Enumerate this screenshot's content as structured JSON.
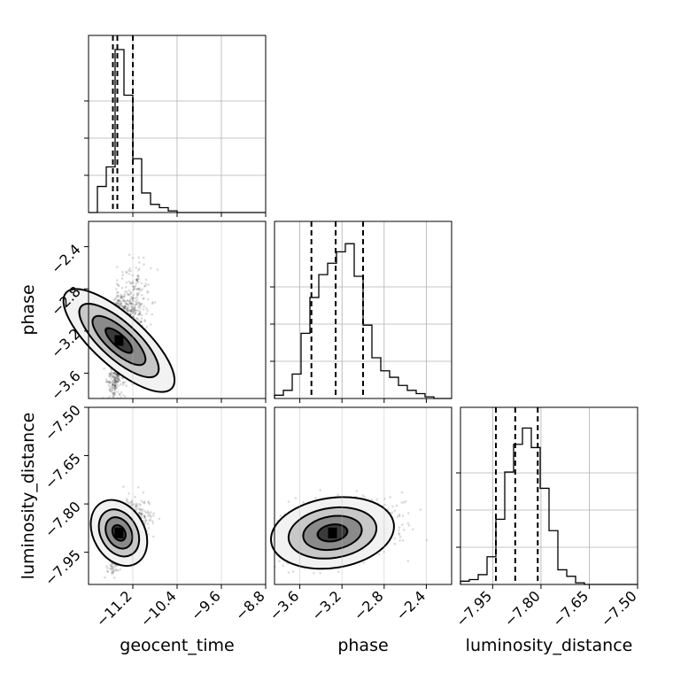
{
  "chart_data": {
    "type": "corner",
    "parameters": [
      "geocent_time",
      "phase",
      "luminosity_distance"
    ],
    "axis_labels": {
      "geocent_time": "geocent_time",
      "phase": "phase",
      "luminosity_distance": "luminosity_distance"
    },
    "ranges": {
      "geocent_time": [
        -12.0,
        -8.8
      ],
      "phase": [
        -3.84,
        -2.16
      ],
      "luminosity_distance": [
        -8.05,
        -7.5
      ]
    },
    "ticks": {
      "geocent_time": [
        {
          "v": -11.2,
          "label": "−11.2"
        },
        {
          "v": -10.4,
          "label": "−10.4"
        },
        {
          "v": -9.6,
          "label": "−9.6"
        },
        {
          "v": -8.8,
          "label": "−8.8"
        }
      ],
      "phase": [
        {
          "v": -3.6,
          "label": "−3.6"
        },
        {
          "v": -3.2,
          "label": "−3.2"
        },
        {
          "v": -2.8,
          "label": "−2.8"
        },
        {
          "v": -2.4,
          "label": "−2.4"
        }
      ],
      "luminosity_distance": [
        {
          "v": -7.95,
          "label": "−7.95"
        },
        {
          "v": -7.8,
          "label": "−7.80"
        },
        {
          "v": -7.65,
          "label": "−7.65"
        },
        {
          "v": -7.5,
          "label": "−7.50"
        }
      ]
    },
    "histograms": {
      "geocent_time": [
        0.0,
        0.16,
        0.28,
        1.0,
        0.72,
        0.33,
        0.12,
        0.05,
        0.03,
        0.01,
        0.0,
        0,
        0,
        0,
        0,
        0,
        0,
        0,
        0,
        0
      ],
      "phase": [
        0.02,
        0.05,
        0.15,
        0.4,
        0.62,
        0.76,
        0.83,
        0.9,
        0.95,
        0.75,
        0.45,
        0.25,
        0.17,
        0.13,
        0.08,
        0.05,
        0.03,
        0.01,
        0,
        0
      ],
      "luminosity_distance": [
        0.02,
        0.03,
        0.06,
        0.17,
        0.4,
        0.69,
        0.86,
        0.96,
        0.84,
        0.59,
        0.33,
        0.09,
        0.05,
        0.01,
        0,
        0,
        0,
        0,
        0,
        0
      ]
    },
    "quantiles": {
      "geocent_time": [
        -11.56,
        -11.48,
        -11.2
      ],
      "phase": [
        -3.49,
        -3.26,
        -3.0
      ],
      "luminosity_distance": [
        -7.94,
        -7.88,
        -7.81
      ]
    },
    "posterior_peak": {
      "geocent_time": -11.45,
      "phase": -3.29,
      "luminosity_distance": -7.89
    },
    "grid": true
  }
}
